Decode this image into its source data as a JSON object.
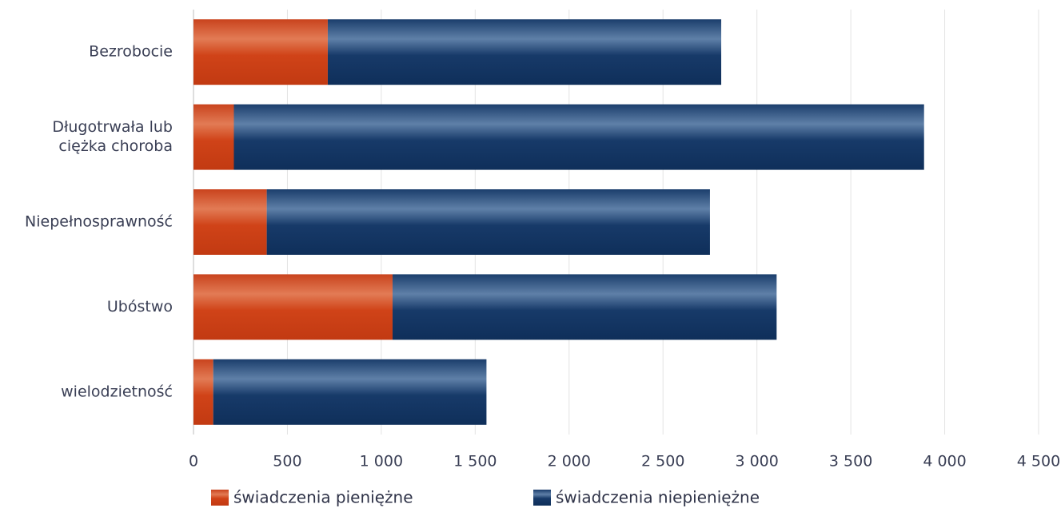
{
  "chart_data": {
    "type": "bar",
    "orientation": "horizontal",
    "stacked": true,
    "categories": [
      [
        "Bezrobocie"
      ],
      [
        "Długotrwała lub",
        "ciężka choroba"
      ],
      [
        "Niepełnosprawność"
      ],
      [
        "Ubóstwo"
      ],
      [
        "wielodzietność"
      ]
    ],
    "series": [
      {
        "name": "świadczenia pieniężne",
        "color": "#d24a1f",
        "values": [
          715,
          215,
          390,
          1060,
          105
        ]
      },
      {
        "name": "świadczenia niepieniężne",
        "color": "#1a3f6e",
        "values": [
          2095,
          3675,
          2360,
          2045,
          1455
        ]
      }
    ],
    "xlim": [
      0,
      4500
    ],
    "xticks": [
      0,
      500,
      1000,
      1500,
      2000,
      2500,
      3000,
      3500,
      4000,
      4500
    ],
    "xtick_labels": [
      "0",
      "500",
      "1 000",
      "1 500",
      "2 000",
      "2 500",
      "3 000",
      "3 500",
      "4 000",
      "4 500"
    ],
    "grid": "vertical",
    "legend_position": "bottom"
  }
}
